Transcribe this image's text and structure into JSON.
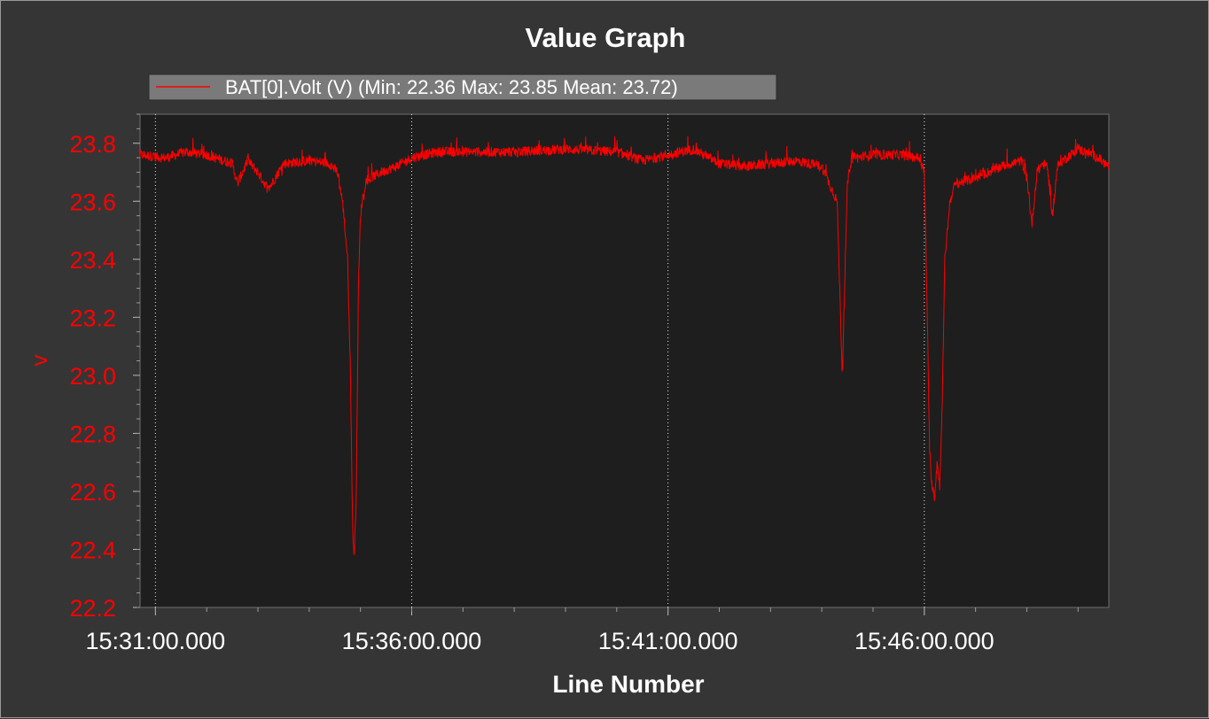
{
  "chart_data": {
    "type": "line",
    "title": "Value Graph",
    "xlabel": "Line Number",
    "ylabel": "v",
    "ylim": [
      22.2,
      23.9
    ],
    "yticks": [
      "22.2",
      "22.4",
      "22.6",
      "22.8",
      "23.0",
      "23.2",
      "23.4",
      "23.6",
      "23.8"
    ],
    "xticks": [
      "15:31:00.000",
      "15:36:00.000",
      "15:41:00.000",
      "15:46:00.000"
    ],
    "xlim_minutes": [
      -0.3,
      18.6
    ],
    "xticks_minutes": [
      0,
      5,
      10,
      15
    ],
    "grid": true,
    "legend": "top-left",
    "colors": {
      "background": "#353535",
      "plot_background": "#1e1e1e",
      "series": "#ff0000",
      "legend_bg": "#7a7a7a"
    },
    "series": [
      {
        "name": "BAT[0].Volt (V) (Min: 22.36 Max: 23.85 Mean: 23.72)",
        "x": [
          -0.3,
          0.2,
          0.6,
          1.0,
          1.5,
          1.6,
          1.8,
          2.0,
          2.2,
          2.5,
          3.0,
          3.4,
          3.55,
          3.65,
          3.75,
          3.8,
          3.85,
          3.88,
          3.92,
          3.96,
          4.0,
          4.05,
          4.1,
          4.2,
          4.4,
          4.7,
          5.0,
          5.5,
          6.0,
          7.0,
          8.0,
          9.0,
          9.5,
          10.0,
          10.5,
          11.0,
          11.5,
          12.0,
          12.5,
          13.0,
          13.3,
          13.4,
          13.5,
          13.55,
          13.6,
          13.7,
          14.0,
          14.5,
          14.9,
          15.0,
          15.05,
          15.1,
          15.15,
          15.2,
          15.25,
          15.3,
          15.35,
          15.4,
          15.5,
          15.6,
          16.0,
          16.5,
          16.9,
          17.0,
          17.1,
          17.2,
          17.3,
          17.4,
          17.5,
          17.6,
          17.7,
          18.0,
          18.3,
          18.6
        ],
        "values": [
          23.76,
          23.75,
          23.77,
          23.76,
          23.73,
          23.66,
          23.74,
          23.7,
          23.64,
          23.73,
          23.74,
          23.73,
          23.7,
          23.6,
          23.4,
          23.05,
          22.45,
          22.38,
          22.6,
          23.3,
          23.55,
          23.62,
          23.66,
          23.68,
          23.7,
          23.72,
          23.75,
          23.77,
          23.77,
          23.77,
          23.78,
          23.77,
          23.74,
          23.76,
          23.78,
          23.73,
          23.72,
          23.73,
          23.74,
          23.72,
          23.6,
          23.0,
          23.66,
          23.72,
          23.76,
          23.75,
          23.76,
          23.76,
          23.75,
          23.7,
          23.3,
          22.75,
          22.62,
          22.58,
          22.7,
          22.62,
          22.9,
          23.4,
          23.6,
          23.66,
          23.68,
          23.72,
          23.74,
          23.68,
          23.52,
          23.7,
          23.73,
          23.72,
          23.55,
          23.72,
          23.74,
          23.78,
          23.76,
          23.72
        ]
      }
    ]
  }
}
